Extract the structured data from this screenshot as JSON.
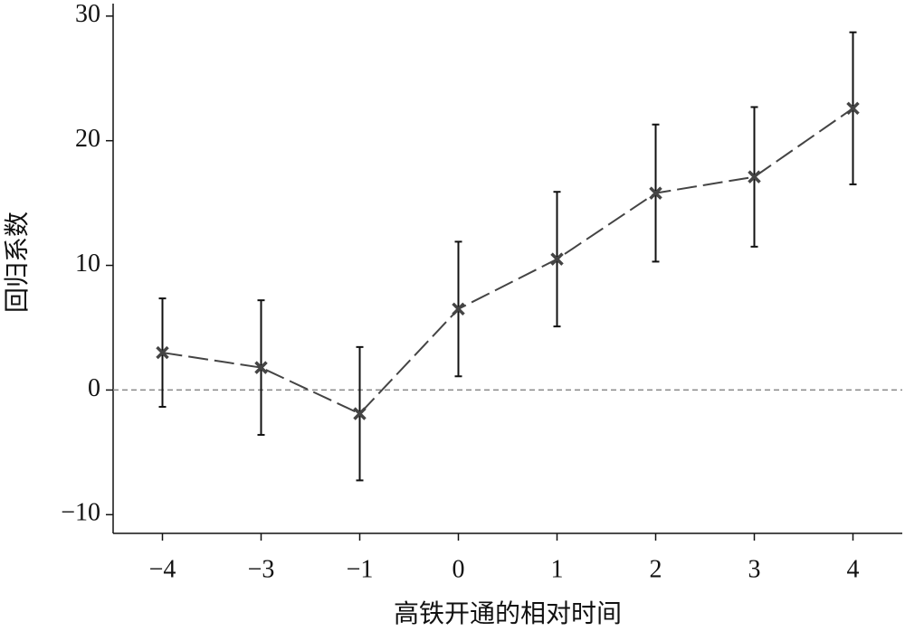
{
  "chart_data": {
    "type": "errorbar_line",
    "x_label": "高铁开通的相对时间",
    "y_label": "回归系数",
    "categories": [
      "−4",
      "−3",
      "−1",
      "0",
      "1",
      "2",
      "3",
      "4"
    ],
    "values": [
      3.0,
      1.8,
      -1.9,
      6.5,
      10.5,
      15.8,
      17.1,
      22.6
    ],
    "error": [
      4.35,
      5.4,
      5.35,
      5.4,
      5.4,
      5.5,
      5.6,
      6.1
    ],
    "color": "#444444",
    "ylim": [
      -11.5,
      31
    ],
    "yticks": [
      {
        "value": -10,
        "label": "−10"
      },
      0,
      10,
      20,
      30
    ],
    "reference_line": 0
  }
}
